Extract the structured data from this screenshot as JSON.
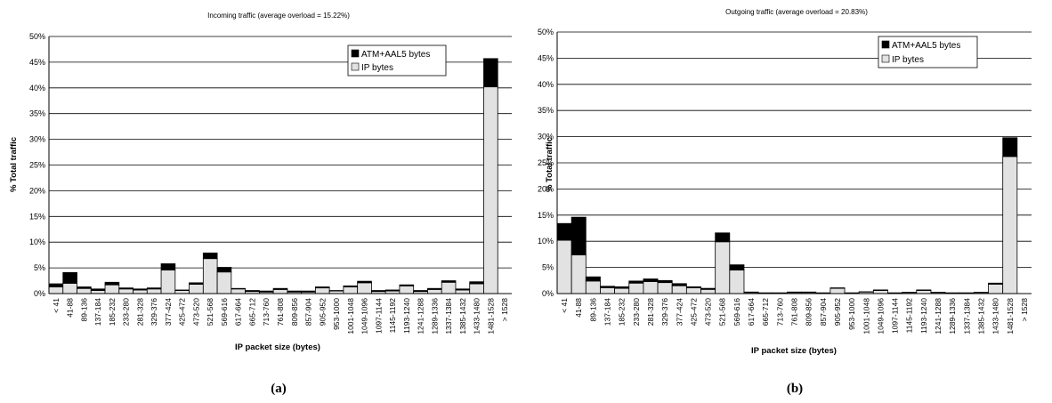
{
  "charts": [
    {
      "caption": "(a)",
      "chart_data": {
        "type": "bar",
        "stacked": true,
        "title": "Incoming traffic (average overload = 15.22%)",
        "xlabel": "IP packet size (bytes)",
        "ylabel": "% Total traffic",
        "ylim": [
          0,
          50
        ],
        "yticks": [
          "0%",
          "5%",
          "10%",
          "15%",
          "20%",
          "25%",
          "30%",
          "35%",
          "40%",
          "45%",
          "50%"
        ],
        "grid": true,
        "legend_position": "top-right",
        "categories": [
          "< 41",
          "41-88",
          "89-136",
          "137-184",
          "185-232",
          "233-280",
          "281-328",
          "329-376",
          "377-424",
          "425-472",
          "473-520",
          "521-568",
          "569-616",
          "617-664",
          "665-712",
          "713-760",
          "761-808",
          "809-856",
          "857-904",
          "905-952",
          "953-1000",
          "1001-1048",
          "1049-1096",
          "1097-1144",
          "1145-1192",
          "1193-1240",
          "1241-1288",
          "1289-1336",
          "1337-1384",
          "1385-1432",
          "1433-1480",
          "1481-1528",
          "> 1528"
        ],
        "series": [
          {
            "name": "IP bytes",
            "color": "#e2e2e2",
            "values": [
              1.3,
              2.0,
              1.0,
              0.6,
              1.7,
              0.9,
              0.7,
              0.9,
              4.6,
              0.6,
              1.8,
              6.8,
              4.2,
              0.9,
              0.4,
              0.3,
              0.8,
              0.3,
              0.3,
              1.1,
              0.5,
              1.3,
              2.1,
              0.4,
              0.5,
              1.5,
              0.4,
              0.8,
              2.2,
              0.7,
              1.9,
              40.2,
              0
            ]
          },
          {
            "name": "ATM+AAL5 bytes",
            "color": "#000000",
            "values": [
              0.6,
              2.1,
              0.3,
              0.3,
              0.5,
              0.2,
              0.2,
              0.2,
              1.2,
              0.1,
              0.3,
              1.1,
              0.9,
              0.1,
              0.2,
              0.2,
              0.2,
              0.2,
              0.2,
              0.2,
              0.1,
              0.2,
              0.3,
              0.2,
              0.2,
              0.2,
              0.2,
              0.2,
              0.3,
              0.2,
              0.4,
              5.5,
              0
            ]
          }
        ]
      }
    },
    {
      "caption": "(b)",
      "chart_data": {
        "type": "bar",
        "stacked": true,
        "title": "Outgoing traffic (average overload = 20.83%)",
        "xlabel": "IP packet size (bytes)",
        "ylabel": "% Total traffic",
        "ylim": [
          0,
          50
        ],
        "yticks": [
          "0%",
          "5%",
          "10%",
          "15%",
          "20%",
          "25%",
          "30%",
          "35%",
          "40%",
          "45%",
          "50%"
        ],
        "grid": true,
        "legend_position": "top-right",
        "categories": [
          "< 41",
          "41-88",
          "89-136",
          "137-184",
          "185-232",
          "233-280",
          "281-328",
          "329-376",
          "377-424",
          "425-472",
          "473-520",
          "521-568",
          "569-616",
          "617-664",
          "665-712",
          "713-760",
          "761-808",
          "809-856",
          "857-904",
          "905-952",
          "953-1000",
          "1001-1048",
          "1049-1096",
          "1097-1144",
          "1145-1192",
          "1193-1240",
          "1241-1288",
          "1289-1336",
          "1337-1384",
          "1385-1432",
          "1433-1480",
          "1481-1528",
          "> 1528"
        ],
        "series": [
          {
            "name": "IP bytes",
            "color": "#e2e2e2",
            "values": [
              10.2,
              7.4,
              2.4,
              1.1,
              1.0,
              2.0,
              2.3,
              2.1,
              1.5,
              1.1,
              0.8,
              9.9,
              4.5,
              0.2,
              0.1,
              0.1,
              0.2,
              0.2,
              0.1,
              1.0,
              0.1,
              0.3,
              0.6,
              0.1,
              0.2,
              0.6,
              0.2,
              0.1,
              0.1,
              0.2,
              1.8,
              26.2,
              0
            ]
          },
          {
            "name": "ATM+AAL5 bytes",
            "color": "#000000",
            "values": [
              3.2,
              7.2,
              0.8,
              0.3,
              0.3,
              0.4,
              0.5,
              0.4,
              0.4,
              0.2,
              0.2,
              1.7,
              1.0,
              0.1,
              0.05,
              0.05,
              0.1,
              0.1,
              0.05,
              0.1,
              0.05,
              0.05,
              0.1,
              0.05,
              0.05,
              0.1,
              0.05,
              0.05,
              0.05,
              0.05,
              0.2,
              3.6,
              0
            ]
          }
        ]
      }
    }
  ]
}
